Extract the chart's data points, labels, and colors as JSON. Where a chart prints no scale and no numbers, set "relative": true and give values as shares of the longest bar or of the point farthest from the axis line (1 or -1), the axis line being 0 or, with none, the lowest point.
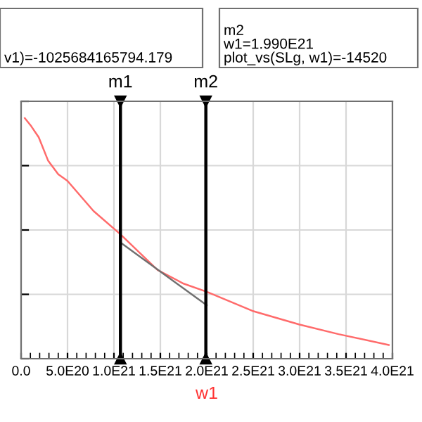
{
  "chart_data": {
    "type": "line",
    "xlabel": "w1",
    "relative": true,
    "grid": true,
    "marker": "none",
    "line_style": "solid",
    "xlim": [
      0,
      4e+21
    ],
    "xticks": [
      {
        "value": 0,
        "label": "0.0"
      },
      {
        "value": 5e+20,
        "label": "5.0E20"
      },
      {
        "value": 1e+21,
        "label": "1.0E21"
      },
      {
        "value": 1.5e+21,
        "label": "1.5E21"
      },
      {
        "value": 2e+21,
        "label": "2.0E21"
      },
      {
        "value": 2.5e+21,
        "label": "2.5E21"
      },
      {
        "value": 3e+21,
        "label": "3.0E21"
      },
      {
        "value": 3.5e+21,
        "label": "3.5E21"
      },
      {
        "value": 4e+21,
        "label": "4.0E21"
      }
    ],
    "series": [
      {
        "color": "#ff6b6b",
        "x": [
          4e+19,
          1.1e+20,
          1.9e+20,
          2.9e+20,
          4e+20,
          5e+20,
          7.8e+20,
          1.07e+21,
          1.47e+21,
          1.75e+21,
          2e+21,
          2.49e+21,
          3e+21,
          3.42e+21,
          3.96e+21
        ],
        "values": [
          1.0,
          0.966,
          0.92,
          0.824,
          0.767,
          0.739,
          0.614,
          0.517,
          0.369,
          0.312,
          0.278,
          0.199,
          0.142,
          0.102,
          0.057
        ]
      },
      {
        "type": "line",
        "color": "#707070",
        "x": [
          1.07e+21,
          2e+21
        ],
        "values": [
          0.483,
          0.222
        ]
      }
    ],
    "ref_lines": [
      {
        "axis": "x",
        "value": 1.07e+21,
        "label": "m1",
        "color": "#000000"
      },
      {
        "axis": "x",
        "value": 1.99e+21,
        "label": "m2",
        "color": "#000000"
      }
    ],
    "annotations": [
      "v1)=-1025684165794.179",
      "m2\nw1=1.990E21\nplot_vs(SLg, w1)=-14520"
    ]
  }
}
